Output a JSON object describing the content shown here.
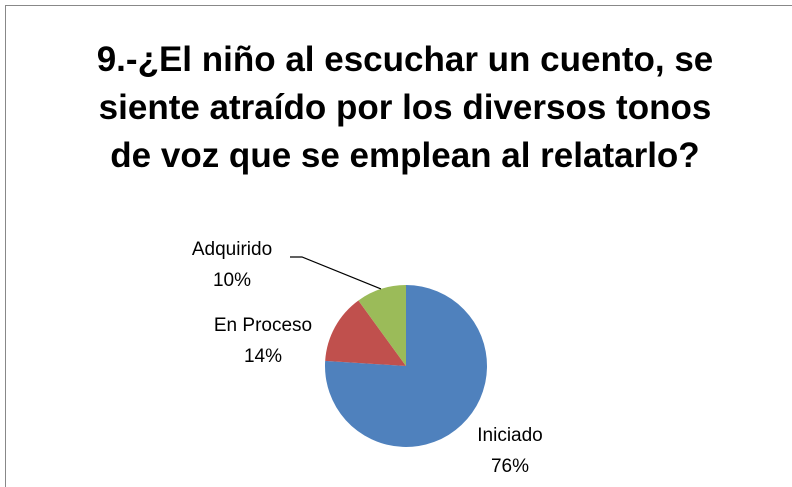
{
  "chart_data": {
    "type": "pie",
    "title": "9.-¿El niño al escuchar un cuento, se siente atraído por los diversos tonos de voz que se emplean al relatarlo?",
    "categories": [
      "Iniciado",
      "En Proceso",
      "Adquirido"
    ],
    "values": [
      76,
      14,
      10
    ],
    "value_labels": [
      "76%",
      "14%",
      "10%"
    ],
    "colors": [
      "#4f81bd",
      "#c0504d",
      "#9bbb59"
    ]
  }
}
